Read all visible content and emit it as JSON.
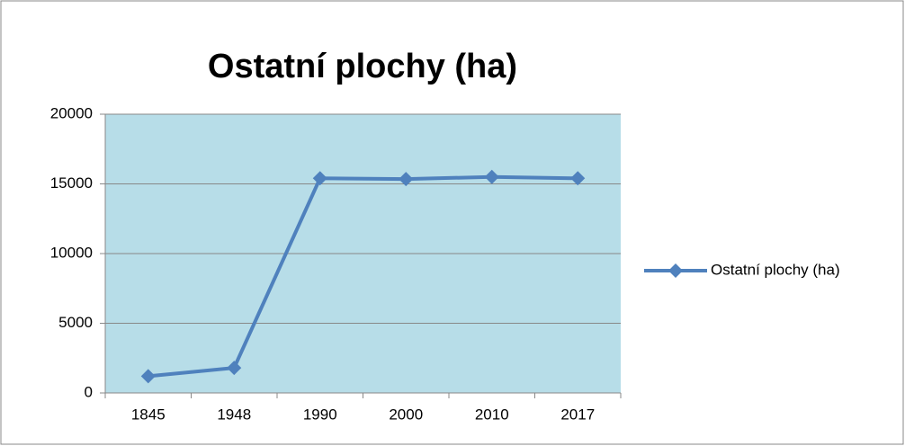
{
  "chart_data": {
    "type": "line",
    "title": "Ostatní plochy (ha)",
    "categories": [
      "1845",
      "1948",
      "1990",
      "2000",
      "2010",
      "2017"
    ],
    "series": [
      {
        "name": "Ostatní plochy (ha)",
        "color": "#4f81bd",
        "values": [
          1200,
          1800,
          15400,
          15350,
          15500,
          15400
        ]
      }
    ],
    "ylim": [
      0,
      20000
    ],
    "yticks": [
      0,
      5000,
      10000,
      15000,
      20000
    ],
    "grid": true,
    "legend": "right",
    "plot_background": "#b7dde8"
  }
}
